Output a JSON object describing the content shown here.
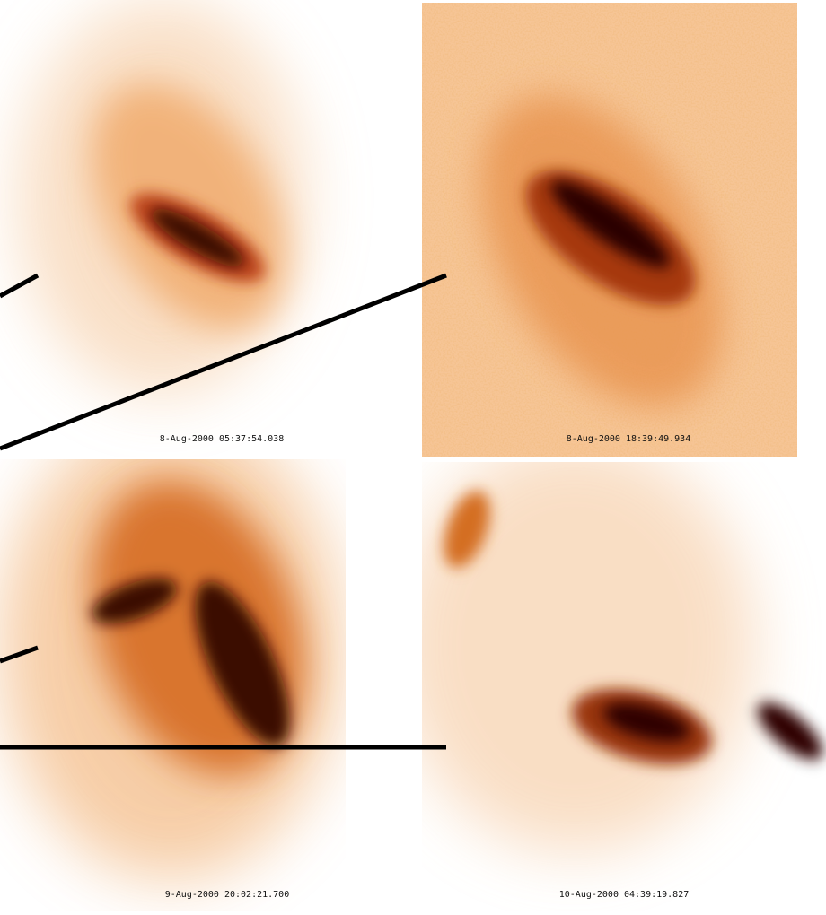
{
  "panels": [
    {
      "label": "8-Aug-2000 05:37:54.038"
    },
    {
      "label": "8-Aug-2000 18:39:49.934"
    },
    {
      "label": "9-Aug-2000 20:02:21.700"
    },
    {
      "label": "10-Aug-2000 04:39:19.827"
    }
  ]
}
